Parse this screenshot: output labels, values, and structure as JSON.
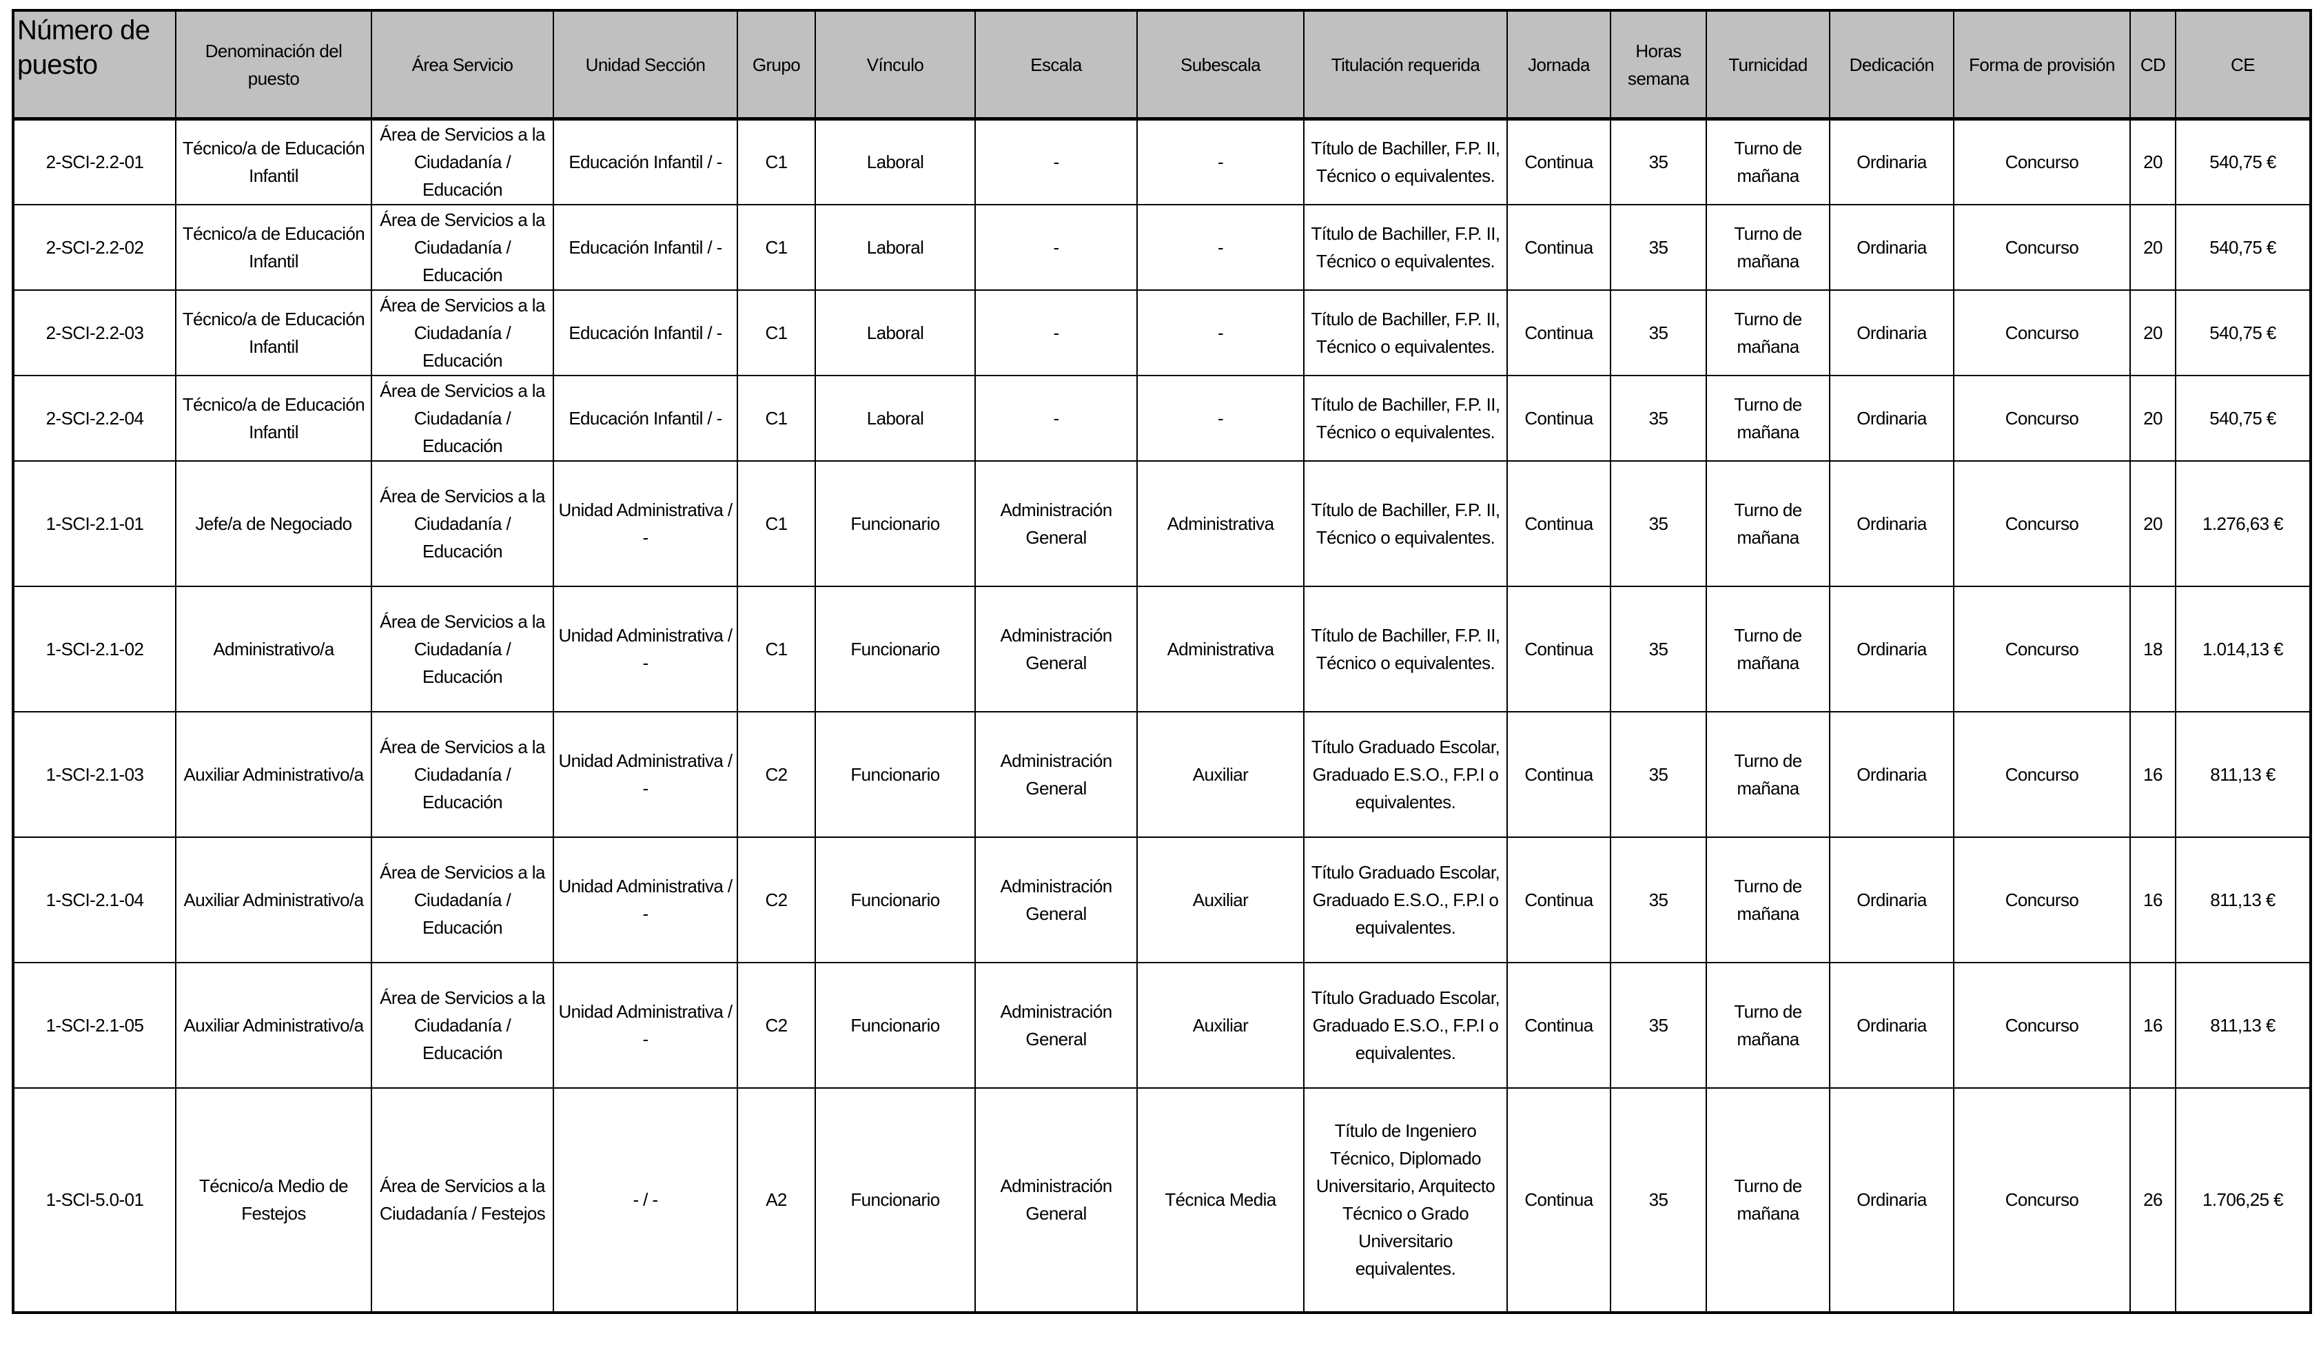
{
  "table": {
    "headers": [
      "Número de puesto",
      "Denominación del puesto",
      "Área Servicio",
      "Unidad Sección",
      "Grupo",
      "Vínculo",
      "Escala",
      "Subescala",
      "Titulación requerida",
      "Jornada",
      "Horas semana",
      "Turnicidad",
      "Dedicación",
      "Forma de provisión",
      "CD",
      "CE"
    ],
    "rows": [
      [
        "2-SCI-2.2-01",
        "Técnico/a de Educación Infantil",
        "Área de Servicios a la Ciudadanía / Educación",
        "Educación Infantil / -",
        "C1",
        "Laboral",
        "-",
        "-",
        "Título de Bachiller, F.P. II, Técnico o equivalentes.",
        "Continua",
        "35",
        "Turno de mañana",
        "Ordinaria",
        "Concurso",
        "20",
        "540,75 €"
      ],
      [
        "2-SCI-2.2-02",
        "Técnico/a de Educación Infantil",
        "Área de Servicios a la Ciudadanía / Educación",
        "Educación Infantil / -",
        "C1",
        "Laboral",
        "-",
        "-",
        "Título de Bachiller, F.P. II, Técnico o equivalentes.",
        "Continua",
        "35",
        "Turno de mañana",
        "Ordinaria",
        "Concurso",
        "20",
        "540,75 €"
      ],
      [
        "2-SCI-2.2-03",
        "Técnico/a de Educación Infantil",
        "Área de Servicios a la Ciudadanía / Educación",
        "Educación Infantil / -",
        "C1",
        "Laboral",
        "-",
        "-",
        "Título de Bachiller, F.P. II, Técnico o equivalentes.",
        "Continua",
        "35",
        "Turno de mañana",
        "Ordinaria",
        "Concurso",
        "20",
        "540,75 €"
      ],
      [
        "2-SCI-2.2-04",
        "Técnico/a de Educación Infantil",
        "Área de Servicios a la Ciudadanía / Educación",
        "Educación Infantil / -",
        "C1",
        "Laboral",
        "-",
        "-",
        "Título de Bachiller, F.P. II, Técnico o equivalentes.",
        "Continua",
        "35",
        "Turno de mañana",
        "Ordinaria",
        "Concurso",
        "20",
        "540,75 €"
      ],
      [
        "1-SCI-2.1-01",
        "Jefe/a de Negociado",
        "Área de Servicios a la Ciudadanía / Educación",
        "Unidad Administrativa / -",
        "C1",
        "Funcionario",
        "Administración General",
        "Administrativa",
        "Título de Bachiller, F.P. II, Técnico o equivalentes.",
        "Continua",
        "35",
        "Turno de mañana",
        "Ordinaria",
        "Concurso",
        "20",
        "1.276,63 €"
      ],
      [
        "1-SCI-2.1-02",
        "Administrativo/a",
        "Área de Servicios a la Ciudadanía / Educación",
        "Unidad Administrativa / -",
        "C1",
        "Funcionario",
        "Administración General",
        "Administrativa",
        "Título de Bachiller, F.P. II, Técnico o equivalentes.",
        "Continua",
        "35",
        "Turno de mañana",
        "Ordinaria",
        "Concurso",
        "18",
        "1.014,13 €"
      ],
      [
        "1-SCI-2.1-03",
        "Auxiliar Administrativo/a",
        "Área de Servicios a la Ciudadanía / Educación",
        "Unidad Administrativa / -",
        "C2",
        "Funcionario",
        "Administración General",
        "Auxiliar",
        "Título Graduado Escolar, Graduado E.S.O., F.P.I o equivalentes.",
        "Continua",
        "35",
        "Turno de mañana",
        "Ordinaria",
        "Concurso",
        "16",
        "811,13 €"
      ],
      [
        "1-SCI-2.1-04",
        "Auxiliar Administrativo/a",
        "Área de Servicios a la Ciudadanía / Educación",
        "Unidad Administrativa / -",
        "C2",
        "Funcionario",
        "Administración General",
        "Auxiliar",
        "Título Graduado Escolar, Graduado E.S.O., F.P.I o equivalentes.",
        "Continua",
        "35",
        "Turno de mañana",
        "Ordinaria",
        "Concurso",
        "16",
        "811,13 €"
      ],
      [
        "1-SCI-2.1-05",
        "Auxiliar Administrativo/a",
        "Área de Servicios a la Ciudadanía / Educación",
        "Unidad Administrativa / -",
        "C2",
        "Funcionario",
        "Administración General",
        "Auxiliar",
        "Título Graduado Escolar, Graduado E.S.O., F.P.I o equivalentes.",
        "Continua",
        "35",
        "Turno de mañana",
        "Ordinaria",
        "Concurso",
        "16",
        "811,13 €"
      ],
      [
        "1-SCI-5.0-01",
        "Técnico/a Medio de Festejos",
        "Área de Servicios a la Ciudadanía / Festejos",
        "- / -",
        "A2",
        "Funcionario",
        "Administración General",
        "Técnica Media",
        "Título de Ingeniero Técnico, Diplomado Universitario, Arquitecto Técnico o Grado Universitario equivalentes.",
        "Continua",
        "35",
        "Turno de mañana",
        "Ordinaria",
        "Concurso",
        "26",
        "1.706,25 €"
      ]
    ]
  }
}
